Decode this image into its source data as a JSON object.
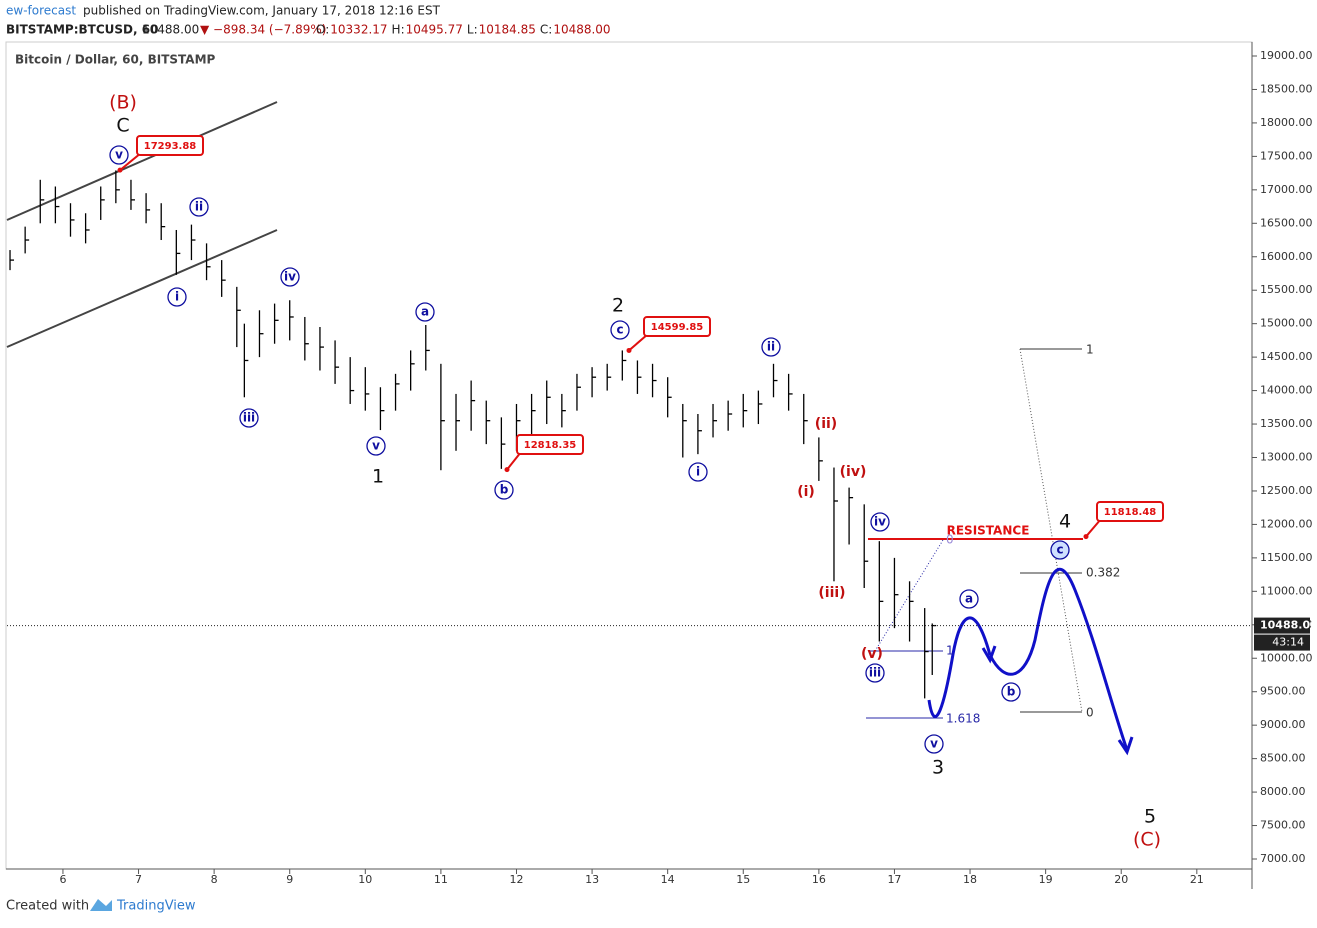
{
  "header": {
    "author": "ew-forecast",
    "published": " published on TradingView.com, January 17, 2018 12:16 EST",
    "symbol": "BITSTAMP:BTCUSD, 60",
    "last": "10488.00",
    "change": "▼ −898.34 (−7.89%)",
    "ohlc": [
      "O:",
      "10332.17",
      "H:",
      "10495.77",
      "L:",
      "10184.85",
      "C:",
      "10488.00"
    ]
  },
  "chart_data": {
    "type": "ohlc",
    "title": "Bitcoin / Dollar, 60, BITSTAMP",
    "x": [
      5.3,
      5.5,
      5.7,
      5.9,
      6.1,
      6.3,
      6.5,
      6.7,
      6.9,
      7.1,
      7.3,
      7.5,
      7.7,
      7.9,
      8.1,
      8.3,
      8.4,
      8.6,
      8.8,
      9.0,
      9.2,
      9.4,
      9.6,
      9.8,
      10.0,
      10.2,
      10.4,
      10.6,
      10.8,
      11.0,
      11.2,
      11.4,
      11.6,
      11.8,
      12.0,
      12.2,
      12.4,
      12.6,
      12.8,
      13.0,
      13.2,
      13.4,
      13.6,
      13.8,
      14.0,
      14.2,
      14.4,
      14.6,
      14.8,
      15.0,
      15.2,
      15.4,
      15.6,
      15.8,
      16.0,
      16.2,
      16.4,
      16.6,
      16.8,
      17.0,
      17.2,
      17.4,
      17.5
    ],
    "high": [
      16100,
      16450,
      17150,
      17050,
      16800,
      16650,
      17050,
      17290,
      17150,
      16950,
      16800,
      16400,
      16480,
      16200,
      15950,
      15550,
      15000,
      15200,
      15300,
      15350,
      15100,
      14950,
      14750,
      14500,
      14350,
      14050,
      14250,
      14600,
      14980,
      14400,
      13950,
      14150,
      13850,
      13600,
      13800,
      13950,
      14150,
      13950,
      14250,
      14350,
      14400,
      14600,
      14450,
      14400,
      14200,
      13800,
      13650,
      13800,
      13850,
      13950,
      14000,
      14400,
      14250,
      13950,
      13300,
      12850,
      12550,
      12300,
      11750,
      11500,
      11150,
      10750,
      10520
    ],
    "low": [
      15800,
      16050,
      16500,
      16500,
      16300,
      16200,
      16550,
      16800,
      16700,
      16500,
      16250,
      15730,
      15950,
      15650,
      15400,
      14650,
      13900,
      14500,
      14700,
      14750,
      14450,
      14300,
      14100,
      13800,
      13700,
      13410,
      13700,
      14000,
      14300,
      12810,
      13100,
      13400,
      13200,
      12830,
      13100,
      13350,
      13500,
      13450,
      13700,
      13900,
      14000,
      14150,
      13950,
      13900,
      13600,
      13000,
      13050,
      13300,
      13400,
      13450,
      13500,
      13900,
      13700,
      13200,
      12650,
      11150,
      11700,
      11050,
      10250,
      10450,
      10250,
      9400,
      9750
    ],
    "close": [
      15950,
      16250,
      16850,
      16750,
      16550,
      16400,
      16850,
      17000,
      16850,
      16700,
      16450,
      16050,
      16250,
      15850,
      15650,
      15200,
      14450,
      14850,
      15050,
      15100,
      14700,
      14650,
      14350,
      14000,
      13950,
      13700,
      14100,
      14400,
      14600,
      13550,
      13550,
      13850,
      13550,
      13200,
      13550,
      13700,
      13900,
      13700,
      14050,
      14200,
      14200,
      14450,
      14200,
      14150,
      13900,
      13550,
      13400,
      13550,
      13650,
      13700,
      13800,
      14150,
      13950,
      13550,
      12950,
      12350,
      12400,
      11450,
      10850,
      10950,
      10850,
      10100,
      10488
    ],
    "color": "#000000",
    "xlim": [
      5.26,
      21.73
    ],
    "xticks": [
      6,
      7,
      8,
      9,
      10,
      11,
      12,
      13,
      14,
      15,
      16,
      17,
      18,
      19,
      20,
      21
    ],
    "ylim": [
      7000,
      19000
    ],
    "yticks": [
      {
        "value": 7000,
        "label": "7000.00"
      },
      {
        "value": 7500,
        "label": "7500.00"
      },
      {
        "value": 8000,
        "label": "8000.00"
      },
      {
        "value": 8500,
        "label": "8500.00"
      },
      {
        "value": 9000,
        "label": "9000.00"
      },
      {
        "value": 9500,
        "label": "9500.00"
      },
      {
        "value": 10000,
        "label": "10000.00"
      },
      {
        "value": 10500,
        "label": "10500.00"
      },
      {
        "value": 11000,
        "label": "11000.00"
      },
      {
        "value": 11500,
        "label": "11500.00"
      },
      {
        "value": 12000,
        "label": "12000.00"
      },
      {
        "value": 12500,
        "label": "12500.00"
      },
      {
        "value": 13000,
        "label": "13000.00"
      },
      {
        "value": 13500,
        "label": "13500.00"
      },
      {
        "value": 14000,
        "label": "14000.00"
      },
      {
        "value": 14500,
        "label": "14500.00"
      },
      {
        "value": 15000,
        "label": "15000.00"
      },
      {
        "value": 15500,
        "label": "15500.00"
      },
      {
        "value": 16000,
        "label": "16000.00"
      },
      {
        "value": 16500,
        "label": "16500.00"
      },
      {
        "value": 17000,
        "label": "17000.00"
      },
      {
        "value": 17500,
        "label": "17500.00"
      },
      {
        "value": 18000,
        "label": "18000.00"
      },
      {
        "value": 18500,
        "label": "18500.00"
      },
      {
        "value": 19000,
        "label": "19000.00"
      }
    ],
    "last_price": {
      "value": 10488,
      "label": "10488.00"
    },
    "countdown": "43:14",
    "price_callouts": [
      17293.88,
      12818.35,
      14599.85,
      11818.48
    ],
    "resistance": "RESISTANCE",
    "wave_circled": [
      "v",
      "ii",
      "i",
      "iv",
      "iii",
      "v",
      "a",
      "b",
      "c",
      "ii",
      "i",
      "iv",
      "iii",
      "v",
      "a",
      "b",
      "c"
    ],
    "wave_red": [
      "(B)",
      "(ii)",
      "(iv)",
      "(i)",
      "(iii)",
      "(v)",
      "(C)"
    ],
    "wave_black": [
      "C",
      "2",
      "1",
      "4",
      "3",
      "5"
    ],
    "fib_levels": [
      1,
      0.382,
      0,
      1.618,
      1,
      0
    ]
  },
  "footer": {
    "created": "Created with",
    "brand": "TradingView"
  }
}
